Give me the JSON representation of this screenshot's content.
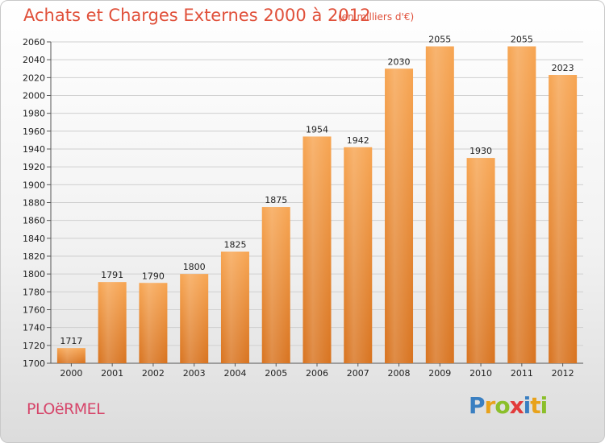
{
  "header": {
    "title": "Achats et Charges Externes 2000 à 2012",
    "subtitle": "(en milliers d'€)"
  },
  "footer": {
    "city": "PLOëRMEL",
    "brand_letters": [
      "P",
      "r",
      "o",
      "x",
      "i",
      "t",
      "i"
    ],
    "brand_colors": [
      "#3a7fc1",
      "#e8a21b",
      "#8bbf2a",
      "#e23b3b",
      "#3a7fc1",
      "#e8a21b",
      "#8bbf2a"
    ]
  },
  "chart_data": {
    "type": "bar",
    "title": "Achats et Charges Externes 2000 à 2012",
    "subtitle": "(en milliers d'€)",
    "categories": [
      "2000",
      "2001",
      "2002",
      "2003",
      "2004",
      "2005",
      "2006",
      "2007",
      "2008",
      "2009",
      "2010",
      "2011",
      "2012"
    ],
    "values": [
      1717,
      1791,
      1790,
      1800,
      1825,
      1875,
      1954,
      1942,
      2030,
      2055,
      1930,
      2055,
      2023
    ],
    "ylim": [
      1700,
      2060
    ],
    "yticks": [
      1700,
      1720,
      1740,
      1760,
      1780,
      1800,
      1820,
      1840,
      1860,
      1880,
      1900,
      1920,
      1940,
      1960,
      1980,
      2000,
      2020,
      2040,
      2060
    ],
    "grid": true,
    "bar_color_top": "#f7a552",
    "bar_color_bottom": "#d8731f"
  }
}
